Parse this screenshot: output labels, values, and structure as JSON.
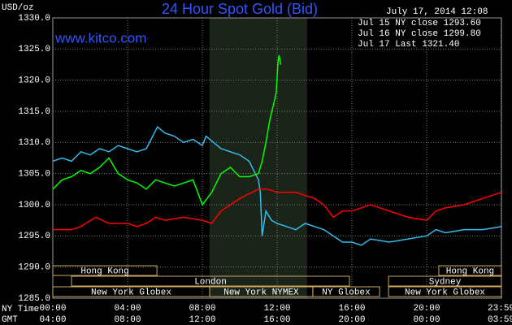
{
  "chart_data": {
    "type": "line",
    "title": "24 Hour Spot Gold (Bid)",
    "y_label": "USD/oz",
    "watermark": "www.kitco.com",
    "timestamp": "July 17, 2014 12:08",
    "x_row_labels": [
      "NY Time",
      "GMT"
    ],
    "xlim": [
      0,
      24
    ],
    "ylim": [
      1285,
      1330
    ],
    "yticks": [
      {
        "value": 1285,
        "label": "1285.0"
      },
      {
        "value": 1290,
        "label": "1290.0"
      },
      {
        "value": 1295,
        "label": "1295.0"
      },
      {
        "value": 1300,
        "label": "1300.0"
      },
      {
        "value": 1305,
        "label": "1305.0"
      },
      {
        "value": 1310,
        "label": "1310.0"
      },
      {
        "value": 1315,
        "label": "1315.0"
      },
      {
        "value": 1320,
        "label": "1320.0"
      },
      {
        "value": 1325,
        "label": "1325.0"
      },
      {
        "value": 1330,
        "label": "1330.0"
      }
    ],
    "xticks": [
      {
        "value": 0,
        "label": "00:00"
      },
      {
        "value": 4,
        "label": "04:00"
      },
      {
        "value": 8,
        "label": "08:00"
      },
      {
        "value": 12,
        "label": "12:00"
      },
      {
        "value": 16,
        "label": "16:00"
      },
      {
        "value": 20,
        "label": "20:00"
      },
      {
        "value": 23.98,
        "label": "23:59"
      }
    ],
    "x2ticks": [
      {
        "value": 0,
        "label": "04:00"
      },
      {
        "value": 4,
        "label": "08:00"
      },
      {
        "value": 8,
        "label": "12:00"
      },
      {
        "value": 12,
        "label": "16:00"
      },
      {
        "value": 16,
        "label": "20:00"
      },
      {
        "value": 20,
        "label": "00:00"
      },
      {
        "value": 23.98,
        "label": "03:59"
      }
    ],
    "grid": true,
    "shaded_region": [
      8.39,
      13.6
    ],
    "sessions": [
      [
        {
          "name": "Hong Kong",
          "start": 0,
          "end": 5.57
        },
        {
          "name": "Hong Kong",
          "start": 20.65,
          "end": 24
        }
      ],
      [
        {
          "name": "London",
          "start": 1.0,
          "end": 15.87
        },
        {
          "name": "Sydney",
          "start": 17.96,
          "end": 24
        }
      ],
      [
        {
          "name": "New York Globex",
          "start": 0,
          "end": 8.39
        },
        {
          "name": "New York NYMEX",
          "start": 8.39,
          "end": 13.91
        },
        {
          "name": "NY Globex",
          "start": 13.91,
          "end": 17.48
        },
        {
          "name": "New York Globex",
          "start": 17.96,
          "end": 24
        }
      ]
    ],
    "series": [
      {
        "name": "Jul 15 NY close 1293.60",
        "color": "#33bbee",
        "x": [
          0,
          0.5,
          1,
          1.5,
          2,
          2.5,
          3,
          3.5,
          4,
          4.5,
          5,
          5.6,
          6,
          6.5,
          7,
          7.5,
          8,
          8.2,
          9,
          10,
          10.5,
          11,
          11.1,
          11.2,
          11.4,
          11.7,
          12,
          12.5,
          13,
          13.5,
          14,
          14.5,
          15,
          15.5,
          16,
          16.5,
          17,
          18,
          19,
          20,
          20.5,
          21,
          22,
          23,
          24
        ],
        "values": [
          1307,
          1307.5,
          1307,
          1308.5,
          1308,
          1309,
          1308.5,
          1309.5,
          1309,
          1308.5,
          1309,
          1312.5,
          1311.5,
          1311,
          1310,
          1310.5,
          1309.5,
          1311,
          1309,
          1308,
          1307,
          1304,
          1302,
          1295,
          1299,
          1297.5,
          1297,
          1296.5,
          1296,
          1297,
          1296.5,
          1296,
          1295,
          1294,
          1294,
          1293.5,
          1294.5,
          1294,
          1294.5,
          1295,
          1296,
          1295.5,
          1296,
          1296,
          1296.5
        ]
      },
      {
        "name": "Jul 16 NY close 1299.80",
        "color": "#ff0000",
        "x": [
          0,
          1,
          1.5,
          2.3,
          3,
          4,
          4.5,
          5,
          5.5,
          6,
          7,
          8,
          8.5,
          9,
          9.5,
          10,
          11,
          11.5,
          12,
          13,
          14,
          14.5,
          15,
          15.5,
          16,
          17,
          18,
          19,
          20,
          20.5,
          21,
          22,
          23,
          24
        ],
        "values": [
          1296,
          1296,
          1296.5,
          1298,
          1297,
          1297,
          1296.5,
          1297,
          1298,
          1297.5,
          1298,
          1297.5,
          1297,
          1299,
          1300,
          1301,
          1302.5,
          1302.5,
          1302,
          1302,
          1301,
          1300,
          1298,
          1299,
          1299,
          1300,
          1299,
          1298,
          1297.5,
          1299,
          1299.5,
          1300,
          1301,
          1302
        ]
      },
      {
        "name": "Jul 17 Last 1321.40",
        "color": "#00ff00",
        "x": [
          0,
          0.5,
          1,
          1.5,
          2,
          2.5,
          3,
          3.5,
          4,
          4.5,
          5,
          5.5,
          6,
          6.5,
          7,
          7.5,
          8,
          8.5,
          9,
          9.5,
          10,
          10.5,
          11,
          11.2,
          11.4,
          11.6,
          11.8,
          11.95,
          12.05,
          12.1,
          12.2
        ],
        "values": [
          1302.5,
          1304,
          1304.5,
          1305.5,
          1305,
          1306,
          1307.5,
          1305,
          1304,
          1303.5,
          1302.5,
          1304,
          1303.5,
          1303,
          1303.5,
          1304,
          1300,
          1302,
          1305,
          1306,
          1304.5,
          1304.5,
          1305,
          1307,
          1310,
          1313.5,
          1316,
          1318,
          1323,
          1324,
          1322.5
        ]
      }
    ]
  }
}
